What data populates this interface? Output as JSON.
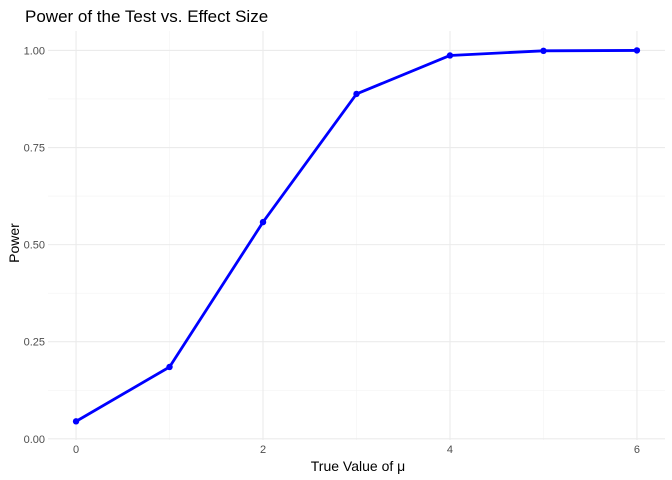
{
  "chart_data": {
    "type": "line",
    "title": "Power of the Test vs. Effect Size",
    "xlabel": "True Value of μ",
    "ylabel": "Power",
    "x": [
      0,
      1,
      2,
      3,
      4,
      5,
      6
    ],
    "series": [
      {
        "values": [
          0.045,
          0.185,
          0.558,
          0.888,
          0.987,
          0.999,
          1.0
        ]
      }
    ],
    "xlim": [
      -0.3,
      6.3
    ],
    "ylim": [
      -0.003,
      1.05
    ],
    "x_ticks": [
      0,
      2,
      4,
      6
    ],
    "x_tick_labels": [
      "0",
      "2",
      "4",
      "6"
    ],
    "y_ticks": [
      0,
      0.25,
      0.5,
      0.75,
      1.0
    ],
    "y_tick_labels": [
      "0.00",
      "0.25",
      "0.50",
      "0.75",
      "1.00"
    ],
    "grid": true,
    "legend": "none",
    "colors": {
      "line": "#0000ff",
      "points": "#0000ff",
      "grid": "#ebebeb"
    }
  }
}
